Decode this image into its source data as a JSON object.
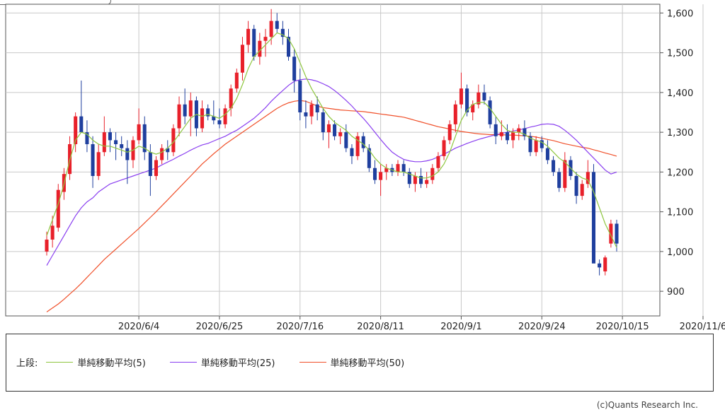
{
  "chart_data": {
    "type": "candlestick",
    "y_ticks": [
      "1,600",
      "1,500",
      "1,400",
      "1,300",
      "1,200",
      "1,100",
      "1,000",
      "900"
    ],
    "y_tick_values": [
      1600,
      1500,
      1400,
      1300,
      1200,
      1100,
      1000,
      900
    ],
    "ylim": [
      838,
      1622
    ],
    "x_tick_labels": [
      "2020/6/4",
      "2020/6/25",
      "2020/7/16",
      "2020/8/11",
      "2020/9/1",
      "2020/9/24",
      "2020/10/15",
      "2020/11/6"
    ],
    "x_tick_index": [
      16,
      30,
      44,
      58,
      72,
      86,
      100,
      114
    ],
    "up_color": "#e8202a",
    "down_color": "#1f3f9e",
    "candles_ohlc": [
      [
        1000,
        1050,
        990,
        1030
      ],
      [
        1030,
        1090,
        1010,
        1065
      ],
      [
        1060,
        1170,
        1050,
        1155
      ],
      [
        1150,
        1210,
        1130,
        1195
      ],
      [
        1195,
        1290,
        1180,
        1270
      ],
      [
        1270,
        1350,
        1250,
        1340
      ],
      [
        1340,
        1430,
        1320,
        1300
      ],
      [
        1300,
        1330,
        1250,
        1270
      ],
      [
        1270,
        1290,
        1160,
        1190
      ],
      [
        1190,
        1270,
        1180,
        1250
      ],
      [
        1250,
        1340,
        1240,
        1300
      ],
      [
        1300,
        1310,
        1250,
        1280
      ],
      [
        1280,
        1300,
        1230,
        1270
      ],
      [
        1270,
        1290,
        1240,
        1260
      ],
      [
        1260,
        1280,
        1170,
        1230
      ],
      [
        1230,
        1290,
        1210,
        1280
      ],
      [
        1280,
        1360,
        1270,
        1320
      ],
      [
        1320,
        1340,
        1230,
        1250
      ],
      [
        1250,
        1270,
        1140,
        1190
      ],
      [
        1190,
        1240,
        1180,
        1230
      ],
      [
        1230,
        1270,
        1220,
        1260
      ],
      [
        1260,
        1280,
        1230,
        1250
      ],
      [
        1250,
        1320,
        1240,
        1310
      ],
      [
        1310,
        1390,
        1290,
        1370
      ],
      [
        1370,
        1410,
        1320,
        1340
      ],
      [
        1340,
        1400,
        1290,
        1380
      ],
      [
        1380,
        1390,
        1290,
        1310
      ],
      [
        1310,
        1380,
        1300,
        1360
      ],
      [
        1360,
        1370,
        1330,
        1340
      ],
      [
        1340,
        1380,
        1320,
        1330
      ],
      [
        1330,
        1360,
        1310,
        1320
      ],
      [
        1320,
        1370,
        1310,
        1360
      ],
      [
        1360,
        1420,
        1340,
        1410
      ],
      [
        1410,
        1460,
        1400,
        1450
      ],
      [
        1450,
        1540,
        1430,
        1520
      ],
      [
        1520,
        1580,
        1500,
        1560
      ],
      [
        1560,
        1570,
        1480,
        1490
      ],
      [
        1490,
        1550,
        1470,
        1530
      ],
      [
        1530,
        1560,
        1490,
        1540
      ],
      [
        1540,
        1610,
        1520,
        1580
      ],
      [
        1580,
        1600,
        1550,
        1560
      ],
      [
        1560,
        1580,
        1520,
        1540
      ],
      [
        1540,
        1560,
        1480,
        1490
      ],
      [
        1490,
        1510,
        1400,
        1430
      ],
      [
        1430,
        1460,
        1330,
        1350
      ],
      [
        1350,
        1380,
        1310,
        1340
      ],
      [
        1340,
        1380,
        1320,
        1370
      ],
      [
        1370,
        1390,
        1330,
        1350
      ],
      [
        1350,
        1360,
        1280,
        1300
      ],
      [
        1300,
        1330,
        1260,
        1320
      ],
      [
        1320,
        1330,
        1280,
        1290
      ],
      [
        1290,
        1310,
        1270,
        1300
      ],
      [
        1300,
        1320,
        1250,
        1260
      ],
      [
        1260,
        1270,
        1220,
        1240
      ],
      [
        1240,
        1300,
        1230,
        1290
      ],
      [
        1290,
        1300,
        1250,
        1260
      ],
      [
        1260,
        1270,
        1200,
        1210
      ],
      [
        1210,
        1230,
        1170,
        1180
      ],
      [
        1180,
        1220,
        1140,
        1200
      ],
      [
        1200,
        1220,
        1180,
        1210
      ],
      [
        1210,
        1220,
        1190,
        1200
      ],
      [
        1200,
        1230,
        1190,
        1220
      ],
      [
        1220,
        1230,
        1190,
        1200
      ],
      [
        1200,
        1210,
        1160,
        1170
      ],
      [
        1170,
        1200,
        1150,
        1190
      ],
      [
        1190,
        1210,
        1160,
        1170
      ],
      [
        1170,
        1200,
        1160,
        1180
      ],
      [
        1180,
        1220,
        1170,
        1210
      ],
      [
        1210,
        1250,
        1200,
        1240
      ],
      [
        1240,
        1290,
        1230,
        1280
      ],
      [
        1280,
        1330,
        1270,
        1320
      ],
      [
        1320,
        1380,
        1300,
        1370
      ],
      [
        1370,
        1450,
        1360,
        1410
      ],
      [
        1410,
        1420,
        1340,
        1350
      ],
      [
        1350,
        1380,
        1330,
        1370
      ],
      [
        1370,
        1420,
        1360,
        1400
      ],
      [
        1400,
        1420,
        1370,
        1380
      ],
      [
        1380,
        1390,
        1310,
        1320
      ],
      [
        1320,
        1340,
        1270,
        1290
      ],
      [
        1290,
        1330,
        1280,
        1300
      ],
      [
        1300,
        1320,
        1270,
        1280
      ],
      [
        1280,
        1310,
        1260,
        1300
      ],
      [
        1300,
        1320,
        1280,
        1310
      ],
      [
        1310,
        1330,
        1280,
        1290
      ],
      [
        1290,
        1300,
        1240,
        1250
      ],
      [
        1250,
        1290,
        1240,
        1280
      ],
      [
        1280,
        1290,
        1250,
        1260
      ],
      [
        1260,
        1280,
        1220,
        1230
      ],
      [
        1230,
        1240,
        1190,
        1200
      ],
      [
        1200,
        1210,
        1150,
        1160
      ],
      [
        1160,
        1250,
        1150,
        1230
      ],
      [
        1230,
        1240,
        1180,
        1190
      ],
      [
        1190,
        1200,
        1120,
        1140
      ],
      [
        1140,
        1180,
        1130,
        1170
      ],
      [
        1170,
        1230,
        1160,
        1200
      ],
      [
        1200,
        1220,
        990,
        970
      ],
      [
        970,
        980,
        940,
        960
      ],
      [
        950,
        990,
        940,
        985
      ],
      [
        1020,
        1080,
        1010,
        1070
      ],
      [
        1070,
        1080,
        1000,
        1020
      ]
    ],
    "sma_5": [
      1040,
      1080,
      1120,
      1170,
      1230,
      1280,
      1300,
      1295,
      1280,
      1270,
      1265,
      1265,
      1260,
      1255,
      1250,
      1255,
      1265,
      1260,
      1250,
      1245,
      1250,
      1260,
      1275,
      1295,
      1315,
      1335,
      1345,
      1340,
      1345,
      1340,
      1335,
      1345,
      1360,
      1385,
      1420,
      1460,
      1490,
      1505,
      1520,
      1535,
      1550,
      1545,
      1535,
      1510,
      1475,
      1440,
      1410,
      1385,
      1360,
      1340,
      1325,
      1315,
      1305,
      1290,
      1280,
      1270,
      1255,
      1235,
      1220,
      1210,
      1205,
      1200,
      1200,
      1195,
      1190,
      1185,
      1185,
      1190,
      1200,
      1220,
      1250,
      1290,
      1330,
      1355,
      1370,
      1375,
      1375,
      1360,
      1340,
      1320,
      1305,
      1300,
      1300,
      1295,
      1285,
      1280,
      1275,
      1265,
      1250,
      1235,
      1225,
      1210,
      1195,
      1185,
      1180,
      1150,
      1110,
      1070,
      1040,
      1010
    ],
    "sma_25": [
      965,
      990,
      1015,
      1040,
      1065,
      1090,
      1110,
      1125,
      1135,
      1150,
      1160,
      1170,
      1175,
      1180,
      1185,
      1190,
      1195,
      1200,
      1205,
      1210,
      1218,
      1225,
      1232,
      1240,
      1247,
      1255,
      1262,
      1268,
      1272,
      1278,
      1284,
      1290,
      1298,
      1305,
      1315,
      1325,
      1335,
      1348,
      1362,
      1378,
      1392,
      1405,
      1418,
      1428,
      1432,
      1434,
      1432,
      1428,
      1422,
      1415,
      1405,
      1393,
      1380,
      1366,
      1350,
      1335,
      1318,
      1300,
      1282,
      1265,
      1250,
      1240,
      1232,
      1228,
      1226,
      1226,
      1228,
      1232,
      1238,
      1245,
      1252,
      1260,
      1266,
      1272,
      1277,
      1282,
      1286,
      1290,
      1294,
      1297,
      1300,
      1303,
      1306,
      1309,
      1313,
      1316,
      1320,
      1321,
      1320,
      1315,
      1305,
      1293,
      1280,
      1265,
      1250,
      1235,
      1220,
      1205,
      1195,
      1200
    ],
    "sma_50": [
      848,
      858,
      868,
      880,
      893,
      906,
      920,
      935,
      950,
      965,
      980,
      993,
      1006,
      1019,
      1032,
      1045,
      1058,
      1072,
      1086,
      1100,
      1115,
      1130,
      1145,
      1160,
      1175,
      1190,
      1205,
      1220,
      1233,
      1246,
      1258,
      1270,
      1280,
      1290,
      1300,
      1310,
      1320,
      1330,
      1340,
      1350,
      1360,
      1368,
      1374,
      1378,
      1380,
      1378,
      1372,
      1366,
      1362,
      1360,
      1358,
      1356,
      1355,
      1354,
      1353,
      1352,
      1350,
      1348,
      1346,
      1344,
      1342,
      1340,
      1338,
      1334,
      1330,
      1326,
      1322,
      1318,
      1314,
      1311,
      1308,
      1305,
      1302,
      1300,
      1298,
      1296,
      1295,
      1294,
      1294,
      1294,
      1293,
      1293,
      1292,
      1291,
      1290,
      1288,
      1285,
      1282,
      1279,
      1275,
      1271,
      1268,
      1265,
      1262,
      1260,
      1256,
      1252,
      1248,
      1244,
      1240
    ],
    "series": [
      {
        "name": "単純移動平均(5)",
        "color": "#8ec63f"
      },
      {
        "name": "単純移動平均(25)",
        "color": "#8a3ff0"
      },
      {
        "name": "単純移動平均(50)",
        "color": "#f0502a"
      }
    ]
  },
  "legend": {
    "prefix": "上段:",
    "items": [
      {
        "label": "単純移動平均(5)",
        "color": "#8ec63f"
      },
      {
        "label": "単純移動平均(25)",
        "color": "#8a3ff0"
      },
      {
        "label": "単純移動平均(50)",
        "color": "#f0502a"
      }
    ]
  },
  "credit": "(c)Quants Research Inc."
}
